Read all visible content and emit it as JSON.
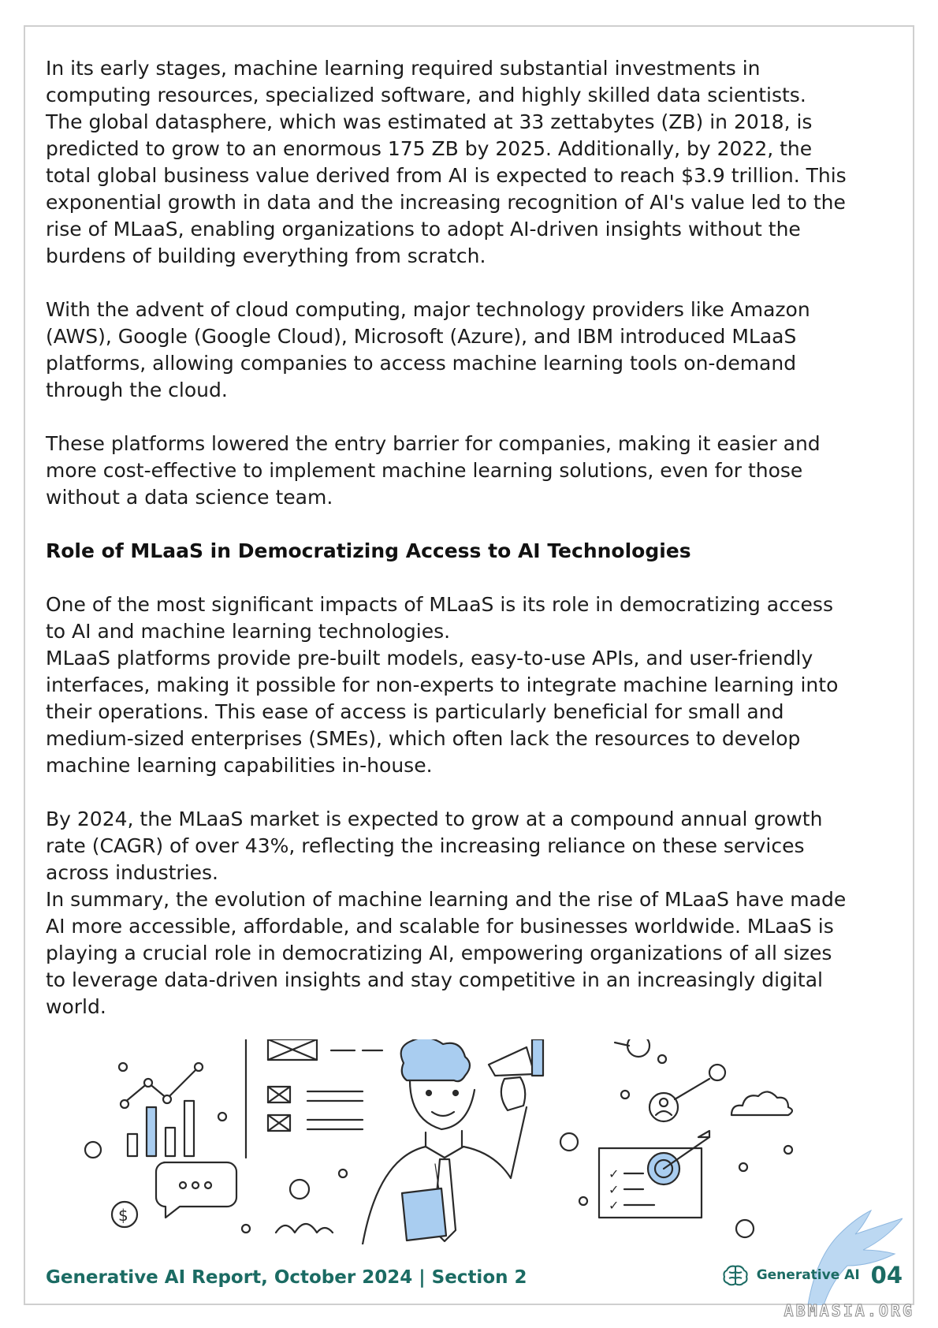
{
  "paragraphs_top": [
    "In its early stages, machine learning required substantial investments in\ncomputing resources, specialized software, and highly skilled data scientists.\nThe global datasphere, which was estimated at 33 zettabytes (ZB) in 2018, is\npredicted to grow to an enormous 175 ZB by 2025. Additionally, by 2022, the\ntotal global business value derived from AI is expected to reach $3.9 trillion. This\nexponential growth in data and the increasing recognition of AI's value led to the\nrise of MLaaS, enabling organizations to adopt AI-driven insights without the\nburdens of building everything from scratch.",
    "With the advent of cloud computing, major technology providers like Amazon\n(AWS), Google (Google Cloud), Microsoft (Azure), and IBM introduced MLaaS\nplatforms, allowing companies to access machine learning tools on-demand\nthrough the cloud.",
    "These platforms lowered the entry barrier for companies, making it easier and\nmore cost-effective to implement machine learning solutions, even for those\nwithout a data science team."
  ],
  "section_heading": "Role of MLaaS in Democratizing Access to AI Technologies",
  "paragraphs_bottom": [
    "One of the most significant impacts of MLaaS is its role in democratizing access\nto AI and machine learning technologies.\nMLaaS platforms provide pre-built models, easy-to-use APIs, and user-friendly\ninterfaces, making it possible for non-experts to integrate machine learning into\ntheir operations. This ease of access is particularly beneficial for small and\nmedium-sized enterprises (SMEs), which often lack the resources to develop\nmachine learning capabilities in-house.",
    "By 2024, the MLaaS market is expected to grow at a compound annual growth\nrate (CAGR) of over 43%, reflecting the increasing reliance on these services\nacross industries.\nIn summary, the evolution of machine learning and the rise of MLaaS have made\nAI more accessible, affordable, and scalable for businesses worldwide. MLaaS is\nplaying a crucial role in democratizing AI, empowering organizations of all sizes\nto leverage data-driven insights and stay competitive in an increasingly digital\nworld."
  ],
  "footer": {
    "report_title": "Generative AI Report, October 2024",
    "separator": "|",
    "section": "Section 2",
    "brand_name": "Generative AI",
    "page_number": "04"
  },
  "watermark": "ABMASIA.ORG",
  "illustration": {
    "dollar_symbol": "$",
    "chat_dots": "o o o",
    "checks": "✓"
  },
  "colors": {
    "accent": "#1b6b63",
    "illustration_blue": "#a9cdf0",
    "line": "#2a2a2a"
  }
}
